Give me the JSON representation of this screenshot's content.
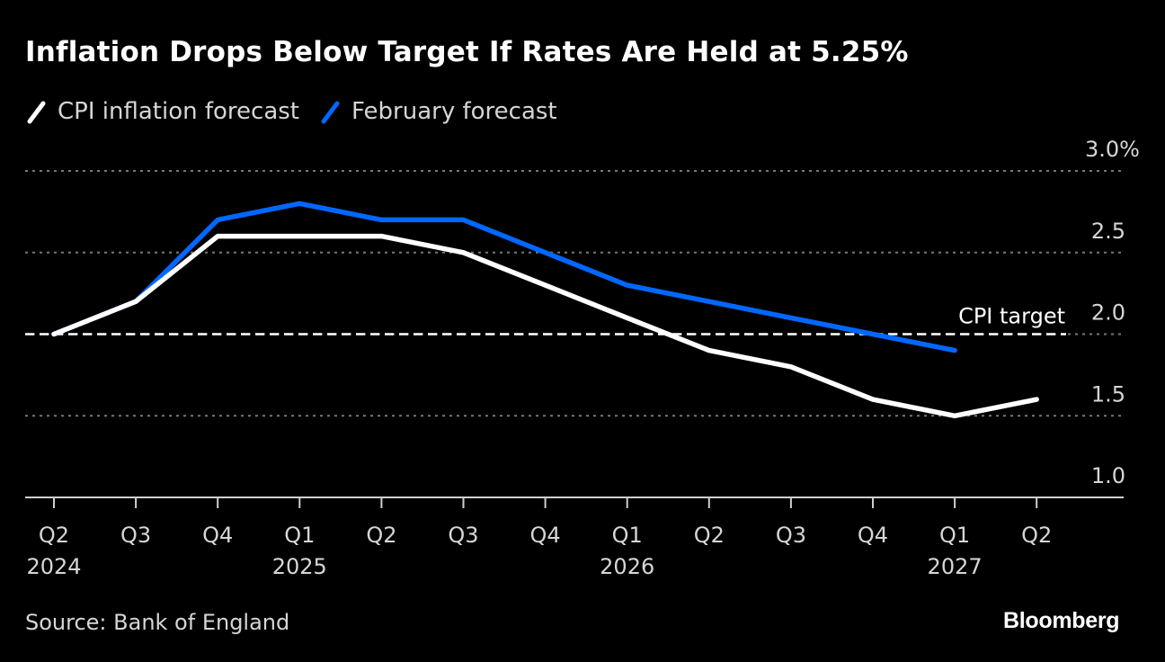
{
  "title": "Inflation Drops Below Target If Rates Are Held at 5.25%",
  "legend": [
    {
      "label": "CPI inflation forecast",
      "color": "#ffffff"
    },
    {
      "label": "February forecast",
      "color": "#0068ff"
    }
  ],
  "source": "Source: Bank of England",
  "brand": "Bloomberg",
  "chart_data": {
    "type": "line",
    "title": "Inflation Drops Below Target If Rates Are Held at 5.25%",
    "xlabel": "",
    "ylabel": "",
    "categories": [
      "Q2 2024",
      "Q3 2024",
      "Q4 2024",
      "Q1 2025",
      "Q2 2025",
      "Q3 2025",
      "Q4 2025",
      "Q1 2026",
      "Q2 2026",
      "Q3 2026",
      "Q4 2026",
      "Q1 2027",
      "Q2 2027"
    ],
    "x_tick_labels": [
      {
        "quarter": "Q2",
        "year": "2024"
      },
      {
        "quarter": "Q3",
        "year": ""
      },
      {
        "quarter": "Q4",
        "year": ""
      },
      {
        "quarter": "Q1",
        "year": "2025"
      },
      {
        "quarter": "Q2",
        "year": ""
      },
      {
        "quarter": "Q3",
        "year": ""
      },
      {
        "quarter": "Q4",
        "year": ""
      },
      {
        "quarter": "Q1",
        "year": "2026"
      },
      {
        "quarter": "Q2",
        "year": ""
      },
      {
        "quarter": "Q3",
        "year": ""
      },
      {
        "quarter": "Q4",
        "year": ""
      },
      {
        "quarter": "Q1",
        "year": "2027"
      },
      {
        "quarter": "Q2",
        "year": ""
      }
    ],
    "series": [
      {
        "name": "CPI inflation forecast",
        "color": "#ffffff",
        "values": [
          2.0,
          2.2,
          2.6,
          2.6,
          2.6,
          2.5,
          2.3,
          2.1,
          1.9,
          1.8,
          1.6,
          1.5,
          1.6
        ]
      },
      {
        "name": "February forecast",
        "color": "#0068ff",
        "values": [
          2.0,
          2.2,
          2.7,
          2.8,
          2.7,
          2.7,
          2.5,
          2.3,
          2.2,
          2.1,
          2.0,
          1.9,
          null
        ]
      }
    ],
    "ylim": [
      1.0,
      3.0
    ],
    "y_ticks": [
      {
        "value": 3.0,
        "label": "3.0%"
      },
      {
        "value": 2.5,
        "label": "2.5"
      },
      {
        "value": 2.0,
        "label": "2.0"
      },
      {
        "value": 1.5,
        "label": "1.5"
      },
      {
        "value": 1.0,
        "label": "1.0"
      }
    ],
    "y_axis_side": "right",
    "grid": true,
    "reference_line": {
      "value": 2.0,
      "label": "CPI target",
      "style": "dashed"
    },
    "legend_position": "top-left"
  }
}
